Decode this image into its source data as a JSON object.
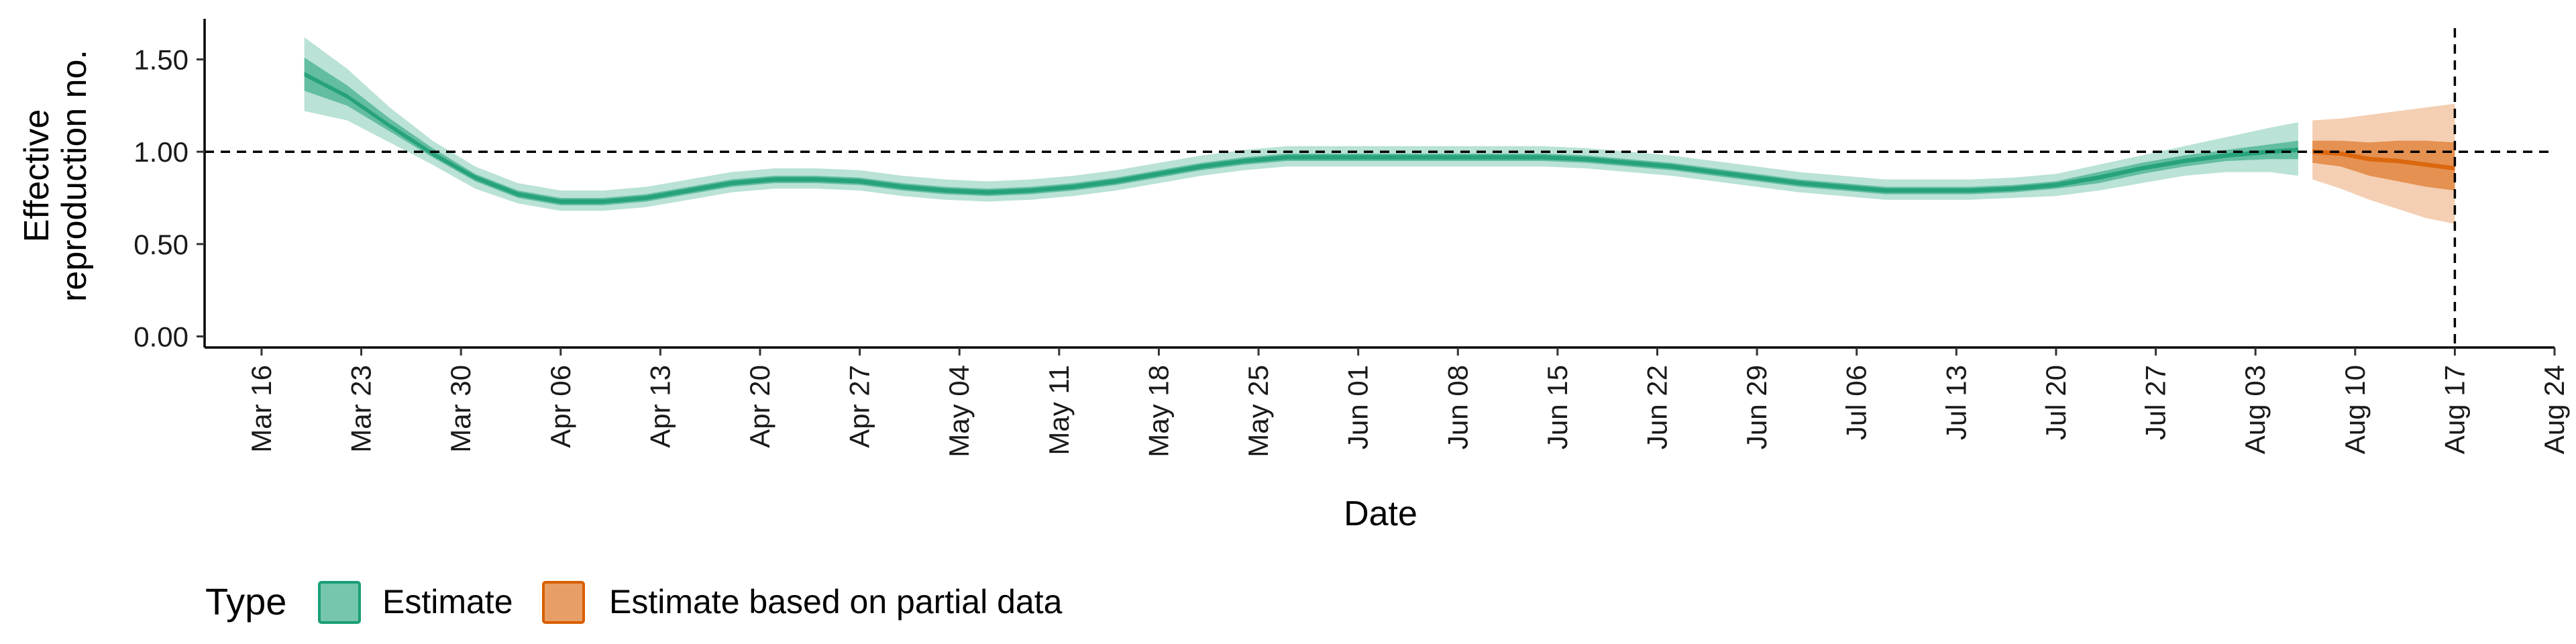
{
  "chart_data": {
    "type": "area",
    "xlabel": "Date",
    "ylabel_lines": [
      "Effective",
      "reproduction no."
    ],
    "yticks": [
      "0.00",
      "0.50",
      "1.00",
      "1.50"
    ],
    "ylim": [
      -0.06,
      1.72
    ],
    "xlim": [
      "2020-03-12",
      "2020-08-24"
    ],
    "xticks": [
      "Mar 16",
      "Mar 23",
      "Mar 30",
      "Apr 06",
      "Apr 13",
      "Apr 20",
      "Apr 27",
      "May 04",
      "May 11",
      "May 18",
      "May 25",
      "Jun 01",
      "Jun 08",
      "Jun 15",
      "Jun 22",
      "Jun 29",
      "Jul 06",
      "Jul 13",
      "Jul 20",
      "Jul 27",
      "Aug 03",
      "Aug 10",
      "Aug 17",
      "Aug 24"
    ],
    "xtick_dates": [
      "2020-03-16",
      "2020-03-23",
      "2020-03-30",
      "2020-04-06",
      "2020-04-13",
      "2020-04-20",
      "2020-04-27",
      "2020-05-04",
      "2020-05-11",
      "2020-05-18",
      "2020-05-25",
      "2020-06-01",
      "2020-06-08",
      "2020-06-15",
      "2020-06-22",
      "2020-06-29",
      "2020-07-06",
      "2020-07-13",
      "2020-07-20",
      "2020-07-27",
      "2020-08-03",
      "2020-08-10",
      "2020-08-17",
      "2020-08-24"
    ],
    "reference_lines": {
      "horizontal_y": 1.0,
      "vertical_x": "2020-08-17",
      "style": "dashed"
    },
    "grid": false,
    "legend": {
      "title": "Type",
      "placement": "bottom",
      "entries": [
        {
          "label": "Estimate",
          "color": "#1b9e77"
        },
        {
          "label": "Estimate based on partial data",
          "color": "#d95f02"
        }
      ]
    },
    "series": [
      {
        "name": "Estimate",
        "color": "#1b9e77",
        "x": [
          "2020-03-19",
          "2020-03-22",
          "2020-03-25",
          "2020-03-28",
          "2020-03-31",
          "2020-04-03",
          "2020-04-06",
          "2020-04-09",
          "2020-04-12",
          "2020-04-15",
          "2020-04-18",
          "2020-04-21",
          "2020-04-24",
          "2020-04-27",
          "2020-04-30",
          "2020-05-03",
          "2020-05-06",
          "2020-05-09",
          "2020-05-12",
          "2020-05-15",
          "2020-05-18",
          "2020-05-21",
          "2020-05-24",
          "2020-05-27",
          "2020-05-30",
          "2020-06-02",
          "2020-06-05",
          "2020-06-08",
          "2020-06-11",
          "2020-06-14",
          "2020-06-17",
          "2020-06-20",
          "2020-06-23",
          "2020-06-26",
          "2020-06-29",
          "2020-07-02",
          "2020-07-05",
          "2020-07-08",
          "2020-07-11",
          "2020-07-14",
          "2020-07-17",
          "2020-07-20",
          "2020-07-23",
          "2020-07-26",
          "2020-07-29",
          "2020-08-01",
          "2020-08-04",
          "2020-08-06"
        ],
        "median": [
          1.42,
          1.3,
          1.14,
          0.99,
          0.86,
          0.77,
          0.73,
          0.73,
          0.75,
          0.79,
          0.83,
          0.85,
          0.85,
          0.84,
          0.81,
          0.79,
          0.78,
          0.79,
          0.81,
          0.84,
          0.88,
          0.92,
          0.95,
          0.97,
          0.97,
          0.97,
          0.97,
          0.97,
          0.97,
          0.97,
          0.96,
          0.94,
          0.92,
          0.89,
          0.86,
          0.83,
          0.81,
          0.79,
          0.79,
          0.79,
          0.8,
          0.82,
          0.86,
          0.91,
          0.95,
          0.98,
          1.0,
          1.01
        ],
        "inner_lower": [
          1.33,
          1.25,
          1.11,
          0.97,
          0.84,
          0.75,
          0.71,
          0.71,
          0.73,
          0.77,
          0.81,
          0.83,
          0.83,
          0.82,
          0.79,
          0.77,
          0.76,
          0.77,
          0.79,
          0.82,
          0.86,
          0.9,
          0.93,
          0.95,
          0.95,
          0.95,
          0.95,
          0.95,
          0.95,
          0.95,
          0.94,
          0.92,
          0.9,
          0.87,
          0.84,
          0.81,
          0.79,
          0.77,
          0.77,
          0.77,
          0.78,
          0.8,
          0.83,
          0.88,
          0.92,
          0.95,
          0.96,
          0.96
        ],
        "inner_upper": [
          1.51,
          1.36,
          1.18,
          1.02,
          0.88,
          0.79,
          0.75,
          0.75,
          0.77,
          0.81,
          0.85,
          0.87,
          0.87,
          0.86,
          0.83,
          0.81,
          0.8,
          0.81,
          0.83,
          0.86,
          0.9,
          0.94,
          0.97,
          0.99,
          0.99,
          0.99,
          0.99,
          0.99,
          0.99,
          0.99,
          0.98,
          0.96,
          0.94,
          0.91,
          0.88,
          0.85,
          0.83,
          0.81,
          0.81,
          0.81,
          0.82,
          0.84,
          0.89,
          0.94,
          0.98,
          1.01,
          1.04,
          1.06
        ],
        "outer_lower": [
          1.22,
          1.17,
          1.05,
          0.93,
          0.8,
          0.72,
          0.68,
          0.68,
          0.7,
          0.74,
          0.78,
          0.8,
          0.8,
          0.79,
          0.76,
          0.74,
          0.73,
          0.74,
          0.76,
          0.79,
          0.83,
          0.87,
          0.9,
          0.92,
          0.92,
          0.92,
          0.92,
          0.92,
          0.92,
          0.92,
          0.91,
          0.89,
          0.87,
          0.84,
          0.81,
          0.78,
          0.76,
          0.74,
          0.74,
          0.74,
          0.75,
          0.76,
          0.79,
          0.83,
          0.87,
          0.89,
          0.89,
          0.87
        ],
        "outer_upper": [
          1.62,
          1.45,
          1.24,
          1.06,
          0.92,
          0.83,
          0.79,
          0.79,
          0.81,
          0.85,
          0.89,
          0.91,
          0.91,
          0.9,
          0.87,
          0.85,
          0.84,
          0.85,
          0.87,
          0.9,
          0.94,
          0.98,
          1.01,
          1.03,
          1.03,
          1.03,
          1.03,
          1.03,
          1.03,
          1.03,
          1.02,
          1.0,
          0.98,
          0.95,
          0.92,
          0.89,
          0.87,
          0.85,
          0.85,
          0.85,
          0.86,
          0.88,
          0.93,
          0.98,
          1.03,
          1.08,
          1.13,
          1.16
        ]
      },
      {
        "name": "Estimate based on partial data",
        "color": "#d95f02",
        "x": [
          "2020-08-07",
          "2020-08-09",
          "2020-08-11",
          "2020-08-13",
          "2020-08-15",
          "2020-08-17"
        ],
        "median": [
          1.0,
          0.99,
          0.96,
          0.95,
          0.93,
          0.91
        ],
        "inner_lower": [
          0.94,
          0.92,
          0.87,
          0.84,
          0.81,
          0.79
        ],
        "inner_upper": [
          1.06,
          1.06,
          1.05,
          1.06,
          1.06,
          1.05
        ],
        "outer_lower": [
          0.85,
          0.8,
          0.74,
          0.69,
          0.64,
          0.61
        ],
        "outer_upper": [
          1.17,
          1.18,
          1.2,
          1.22,
          1.24,
          1.26
        ]
      }
    ]
  }
}
